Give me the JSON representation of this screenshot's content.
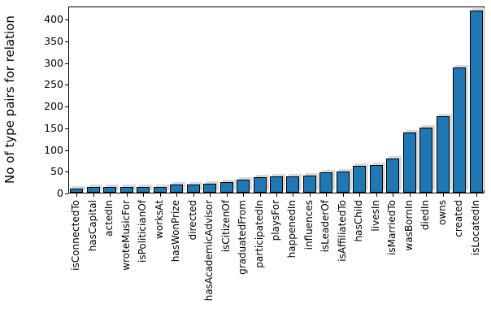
{
  "figure": {
    "background": "#ffffff"
  },
  "chart_data": {
    "type": "bar",
    "title": "",
    "xlabel": "",
    "ylabel": "No of type pairs for relation",
    "categories": [
      "isConnectedTo",
      "hasCapital",
      "actedIn",
      "wroteMusicFor",
      "isPoliticianOf",
      "worksAt",
      "hasWonPrize",
      "directed",
      "hasAcademicAdvisor",
      "isCitizenOf",
      "graduatedFrom",
      "participatedIn",
      "playsFor",
      "happenedIn",
      "influences",
      "isLeaderOf",
      "isAffiliatedTo",
      "hasChild",
      "livesIn",
      "isMarriedTo",
      "wasBornIn",
      "diedIn",
      "owns",
      "created",
      "isLocatedIn"
    ],
    "values": [
      10,
      13,
      13,
      14,
      14,
      14,
      18,
      19,
      20,
      24,
      29,
      36,
      37,
      38,
      39,
      47,
      49,
      62,
      63,
      78,
      139,
      149,
      175,
      288,
      419
    ],
    "ylim": [
      0,
      430
    ],
    "yticks": [
      0,
      50,
      100,
      150,
      200,
      250,
      300,
      350,
      400
    ],
    "grid": false,
    "legend": null,
    "bar_color": "#1f77b4",
    "bar_edge_color": "#000000",
    "shadow_color": "#d9d9d9",
    "axis_color": "#000000"
  }
}
